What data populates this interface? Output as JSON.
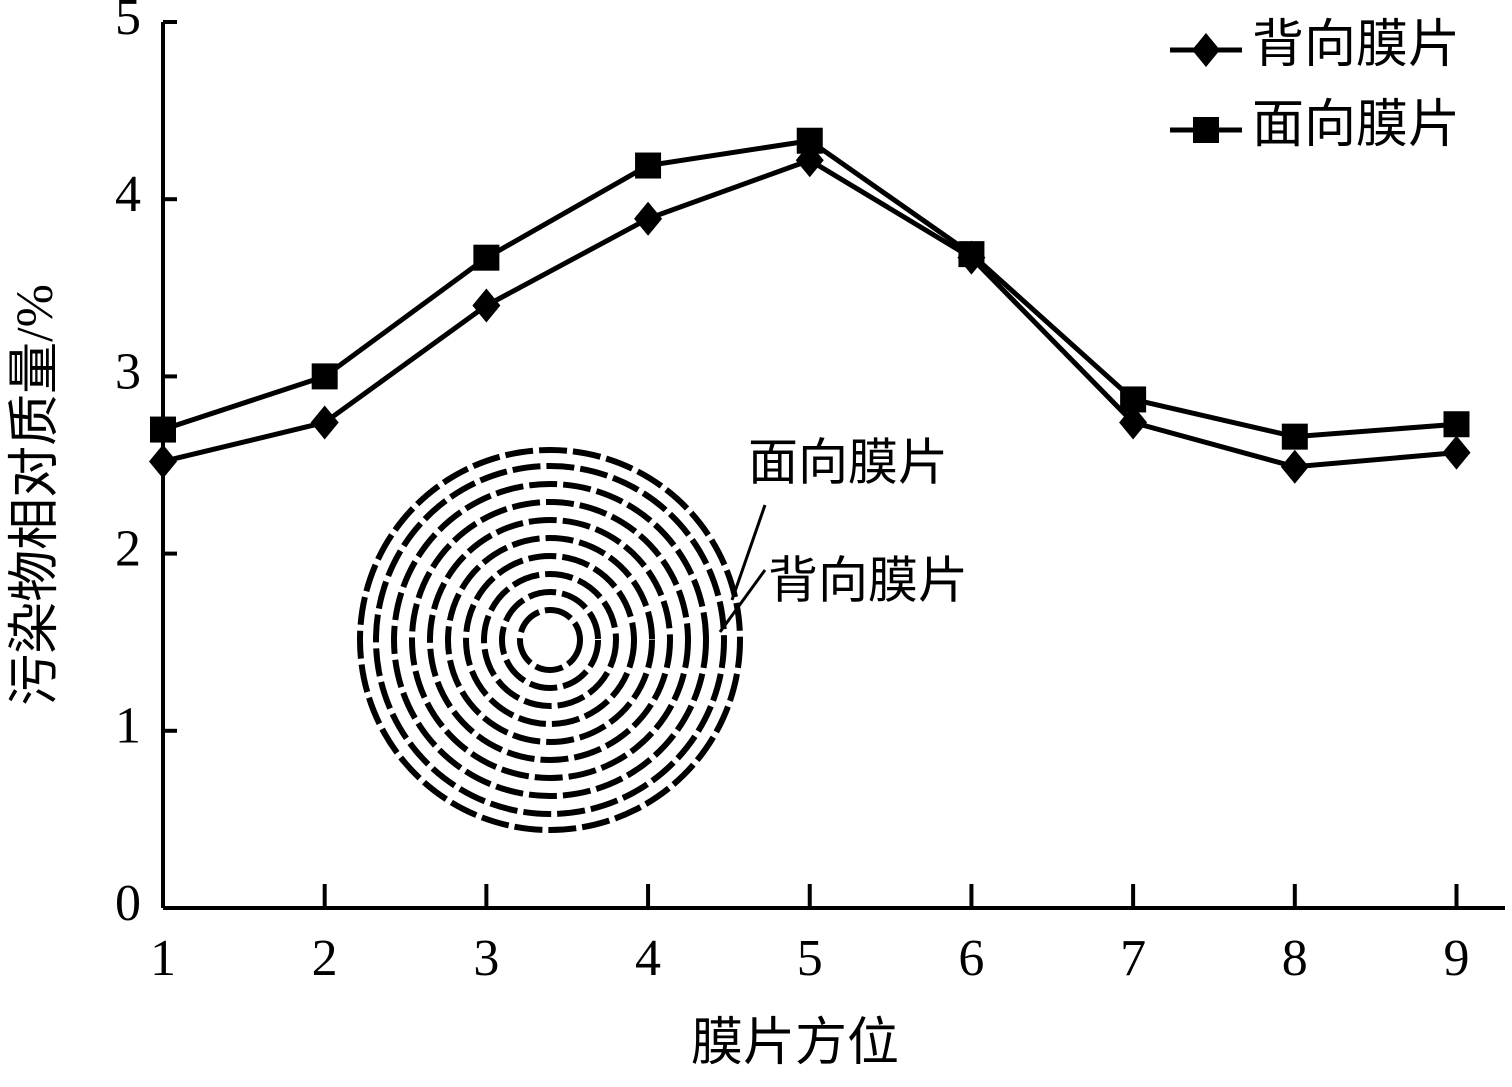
{
  "chart_data": {
    "type": "line",
    "x_label": "膜片方位",
    "y_label": "污染物相对质量/%",
    "x": [
      1,
      2,
      3,
      4,
      5,
      6,
      7,
      8,
      9
    ],
    "xlim": [
      1,
      9.3
    ],
    "xticks": [
      1,
      2,
      3,
      4,
      5,
      6,
      7,
      8,
      9
    ],
    "ylim": [
      0,
      5
    ],
    "yticks": [
      0,
      1,
      2,
      3,
      4,
      5
    ],
    "legend": "top-right",
    "series": [
      {
        "name": "背向膜片",
        "color": "#000000",
        "marker": "diamond",
        "values": [
          2.52,
          2.74,
          3.4,
          3.89,
          4.22,
          3.67,
          2.74,
          2.49,
          2.57
        ]
      },
      {
        "name": "面向膜片",
        "color": "#000000",
        "marker": "square",
        "values": [
          2.7,
          3.0,
          3.67,
          4.19,
          4.33,
          3.69,
          2.87,
          2.66,
          2.73
        ]
      }
    ],
    "annotations": [
      "面向膜片",
      "背向膜片"
    ]
  }
}
